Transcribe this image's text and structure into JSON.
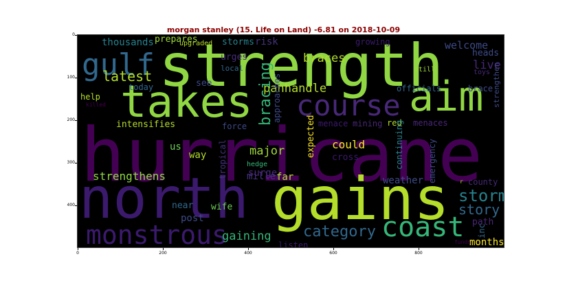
{
  "title": "morgan stanley (15. Life on Land) -6.81 on 2018-10-09",
  "title_color": "#8b0000",
  "axes": {
    "y_ticks": [
      "0",
      "100",
      "200",
      "300",
      "400"
    ],
    "x_ticks": [
      "0",
      "200",
      "400",
      "600",
      "800"
    ]
  },
  "words": [
    "hurricane",
    "north",
    "gains",
    "strength",
    "takes",
    "aim",
    "course",
    "coast",
    "gulf",
    "monstrous",
    "storm",
    "story",
    "category",
    "latest",
    "bracing",
    "panhandle",
    "braces",
    "strengthens",
    "major",
    "could",
    "gaining",
    "live",
    "welcome",
    "heads",
    "path",
    "months",
    "inc",
    "weather",
    "county",
    "surge",
    "thousands",
    "prepares",
    "storms",
    "risk",
    "growing",
    "upgraded",
    "urges",
    "local",
    "see",
    "help",
    "today",
    "intensifies",
    "force",
    "us",
    "way",
    "tropical",
    "hedge",
    "miller",
    "far",
    "listen",
    "near",
    "wife",
    "post",
    "menace",
    "mining",
    "red",
    "menaces",
    "expected",
    "cross",
    "continuing",
    "emergency",
    "strengthen",
    "officials",
    "brace",
    "approaches",
    "still",
    "toys",
    "killed",
    "funds",
    "r"
  ]
}
